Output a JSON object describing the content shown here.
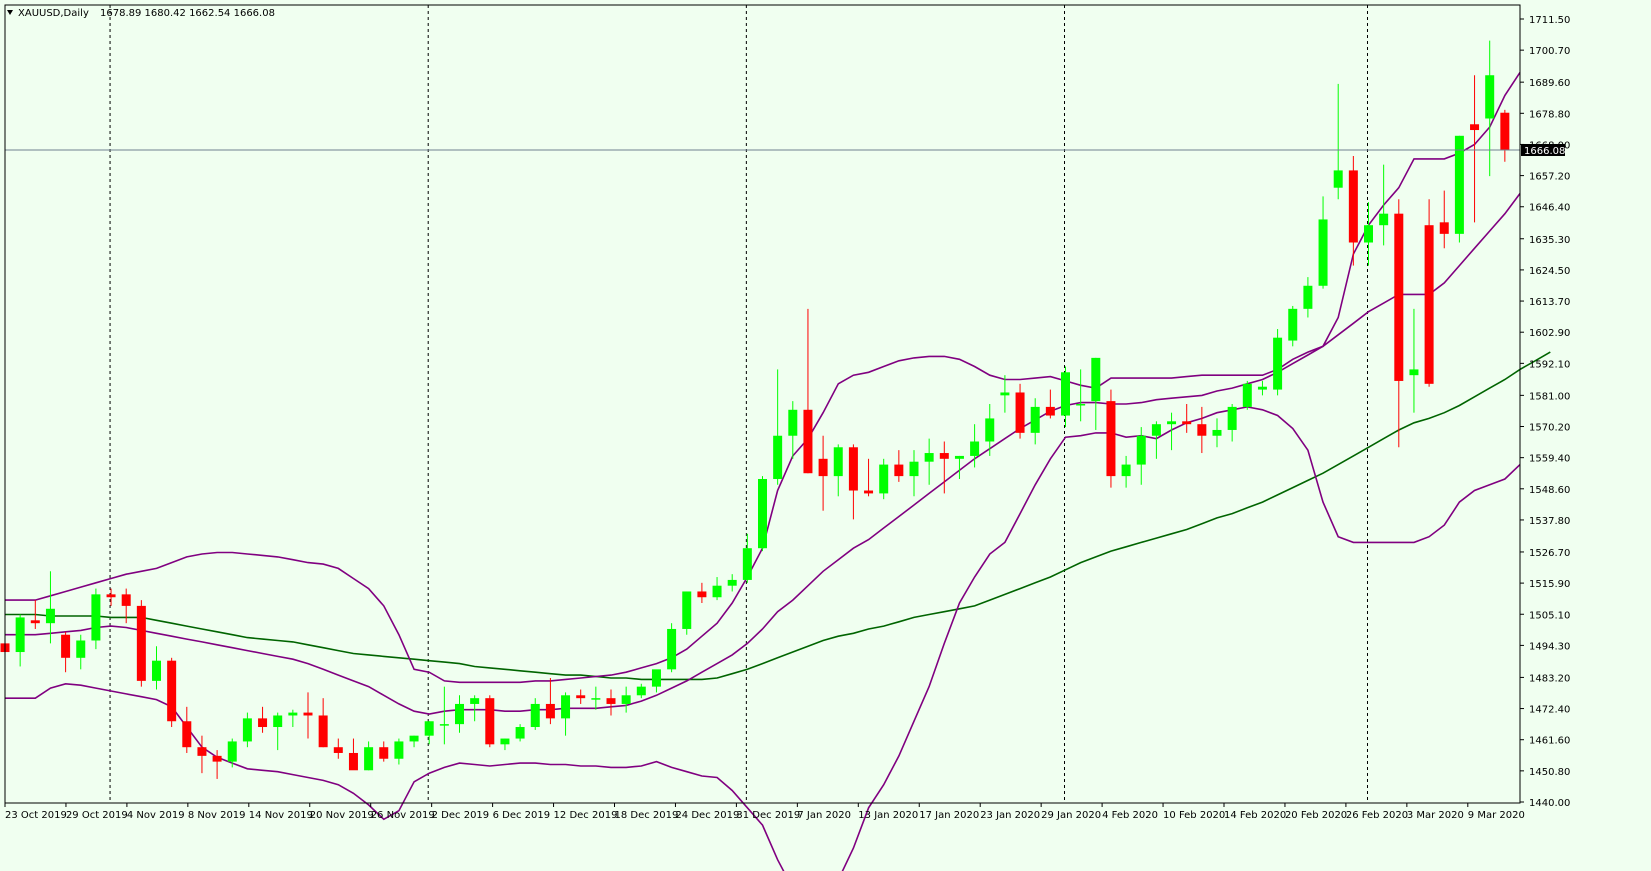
{
  "header": {
    "symbol": "XAUUSD,Daily",
    "ohlc": "1678.89 1680.42 1662.54 1666.08"
  },
  "colors": {
    "background": "#f0fff0",
    "bull": "#00ff00",
    "bear": "#ff0000",
    "bands": "#800080",
    "ma": "#006400",
    "grid": "#000000"
  },
  "chart_data": {
    "type": "candlestick",
    "title": "XAUUSD,Daily",
    "ylim": [
      1440.0,
      1711.5
    ],
    "price_ticks": [
      "1711.50",
      "1700.70",
      "1689.60",
      "1678.80",
      "1668.00",
      "1657.20",
      "1646.40",
      "1635.30",
      "1624.50",
      "1613.70",
      "1602.90",
      "1592.10",
      "1581.00",
      "1570.20",
      "1559.40",
      "1548.60",
      "1537.80",
      "1526.70",
      "1515.90",
      "1505.10",
      "1494.30",
      "1483.20",
      "1472.40",
      "1461.60",
      "1450.80",
      "1440.00"
    ],
    "current_price": 1666.08,
    "date_labels": [
      "23 Oct 2019",
      "29 Oct 2019",
      "4 Nov 2019",
      "8 Nov 2019",
      "14 Nov 2019",
      "20 Nov 2019",
      "26 Nov 2019",
      "2 Dec 2019",
      "6 Dec 2019",
      "12 Dec 2019",
      "18 Dec 2019",
      "24 Dec 2019",
      "31 Dec 2019",
      "7 Jan 2020",
      "13 Jan 2020",
      "17 Jan 2020",
      "23 Jan 2020",
      "29 Jan 2020",
      "4 Feb 2020",
      "10 Feb 2020",
      "14 Feb 2020",
      "20 Feb 2020",
      "26 Feb 2020",
      "3 Mar 2020",
      "9 Mar 2020"
    ],
    "period_separators": [
      "31 Oct 2019",
      "2 Dec 2019",
      "31 Dec 2019",
      "31 Jan 2020",
      "28 Feb 2020"
    ],
    "candles": [
      [
        1495,
        1503,
        1489,
        1492
      ],
      [
        1492,
        1505,
        1487,
        1504
      ],
      [
        1503,
        1510,
        1500,
        1502
      ],
      [
        1502,
        1520,
        1495,
        1507
      ],
      [
        1498,
        1499,
        1485,
        1490
      ],
      [
        1490,
        1498,
        1486,
        1496
      ],
      [
        1496,
        1514,
        1493,
        1512
      ],
      [
        1512,
        1514,
        1508,
        1511
      ],
      [
        1512,
        1514,
        1502,
        1508
      ],
      [
        1508,
        1510,
        1480,
        1482
      ],
      [
        1482,
        1494,
        1479,
        1489
      ],
      [
        1489,
        1490,
        1466,
        1468
      ],
      [
        1468,
        1473,
        1457,
        1459
      ],
      [
        1459,
        1463,
        1450,
        1456
      ],
      [
        1456,
        1458,
        1448,
        1454
      ],
      [
        1454,
        1462,
        1452,
        1461
      ],
      [
        1461,
        1471,
        1459,
        1469
      ],
      [
        1469,
        1473,
        1464,
        1466
      ],
      [
        1466,
        1471,
        1458,
        1470
      ],
      [
        1470,
        1472,
        1466,
        1471
      ],
      [
        1471,
        1478,
        1462,
        1470
      ],
      [
        1470,
        1476,
        1459,
        1459
      ],
      [
        1459,
        1462,
        1455,
        1457
      ],
      [
        1457,
        1462,
        1452,
        1451
      ],
      [
        1451,
        1461,
        1451,
        1459
      ],
      [
        1459,
        1461,
        1454,
        1455
      ],
      [
        1455,
        1462,
        1453,
        1461
      ],
      [
        1461,
        1463,
        1459,
        1463
      ],
      [
        1463,
        1468,
        1460,
        1468
      ],
      [
        1467,
        1480,
        1460,
        1467
      ],
      [
        1467,
        1477,
        1464,
        1474
      ],
      [
        1474,
        1477,
        1468,
        1476
      ],
      [
        1476,
        1477,
        1459,
        1460
      ],
      [
        1460,
        1462,
        1458,
        1462
      ],
      [
        1462,
        1467,
        1461,
        1466
      ],
      [
        1466,
        1476,
        1465,
        1474
      ],
      [
        1474,
        1483,
        1467,
        1469
      ],
      [
        1469,
        1478,
        1463,
        1477
      ],
      [
        1477,
        1479,
        1474,
        1476
      ],
      [
        1476,
        1480,
        1472,
        1476
      ],
      [
        1476,
        1479,
        1470,
        1474
      ],
      [
        1474,
        1480,
        1471,
        1477
      ],
      [
        1477,
        1481,
        1476,
        1480
      ],
      [
        1480,
        1485,
        1478,
        1486
      ],
      [
        1486,
        1502,
        1485,
        1500
      ],
      [
        1500,
        1513,
        1498,
        1513
      ],
      [
        1513,
        1516,
        1509,
        1511
      ],
      [
        1511,
        1518,
        1510,
        1515
      ],
      [
        1515,
        1519,
        1513,
        1517
      ],
      [
        1517,
        1533,
        1516,
        1528
      ],
      [
        1528,
        1553,
        1527,
        1552
      ],
      [
        1552,
        1590,
        1550,
        1567
      ],
      [
        1567,
        1579,
        1559,
        1576
      ],
      [
        1576,
        1611,
        1554,
        1554
      ],
      [
        1559,
        1567,
        1541,
        1553
      ],
      [
        1553,
        1564,
        1546,
        1563
      ],
      [
        1563,
        1564,
        1538,
        1548
      ],
      [
        1548,
        1559,
        1546,
        1547
      ],
      [
        1547,
        1559,
        1545,
        1557
      ],
      [
        1557,
        1562,
        1551,
        1553
      ],
      [
        1553,
        1562,
        1546,
        1558
      ],
      [
        1558,
        1566,
        1550,
        1561
      ],
      [
        1561,
        1565,
        1547,
        1559
      ],
      [
        1559,
        1560,
        1552,
        1560
      ],
      [
        1560,
        1571,
        1556,
        1565
      ],
      [
        1565,
        1578,
        1560,
        1573
      ],
      [
        1581,
        1588,
        1575,
        1582
      ],
      [
        1582,
        1585,
        1566,
        1568
      ],
      [
        1568,
        1580,
        1564,
        1577
      ],
      [
        1577,
        1583,
        1573,
        1574
      ],
      [
        1574,
        1591,
        1570,
        1589
      ],
      [
        1578,
        1590,
        1572,
        1578
      ],
      [
        1579,
        1594,
        1569,
        1594
      ],
      [
        1579,
        1583,
        1549,
        1553
      ],
      [
        1553,
        1560,
        1549,
        1557
      ],
      [
        1557,
        1570,
        1550,
        1567
      ],
      [
        1567,
        1572,
        1559,
        1571
      ],
      [
        1571,
        1575,
        1562,
        1572
      ],
      [
        1572,
        1578,
        1568,
        1571
      ],
      [
        1571,
        1577,
        1561,
        1567
      ],
      [
        1567,
        1573,
        1563,
        1569
      ],
      [
        1569,
        1578,
        1565,
        1577
      ],
      [
        1577,
        1586,
        1576,
        1585
      ],
      [
        1583,
        1586,
        1581,
        1584
      ],
      [
        1583,
        1604,
        1581,
        1601
      ],
      [
        1600,
        1612,
        1598,
        1611
      ],
      [
        1611,
        1622,
        1608,
        1619
      ],
      [
        1619,
        1650,
        1618,
        1642
      ],
      [
        1653,
        1689,
        1649,
        1659
      ],
      [
        1659,
        1664,
        1626,
        1634
      ],
      [
        1634,
        1648,
        1626,
        1640
      ],
      [
        1640,
        1661,
        1633,
        1644
      ],
      [
        1644,
        1649,
        1563,
        1586
      ],
      [
        1588,
        1611,
        1575,
        1590
      ],
      [
        1640,
        1649,
        1584,
        1585
      ],
      [
        1641,
        1652,
        1632,
        1637
      ],
      [
        1637,
        1671,
        1634,
        1671
      ],
      [
        1675,
        1692,
        1641,
        1673
      ],
      [
        1677,
        1704,
        1657,
        1692
      ],
      [
        1679,
        1680,
        1662,
        1666
      ]
    ]
  },
  "indicators": {
    "sma_long": [
      1505.0,
      1505.0,
      1505.0,
      1504.5,
      1504.5,
      1504.5,
      1504.5,
      1504.0,
      1504.0,
      1504.0,
      1503.0,
      1502.0,
      1501.0,
      1500.0,
      1499.0,
      1498.0,
      1497.0,
      1496.5,
      1496.0,
      1495.5,
      1494.5,
      1493.5,
      1492.5,
      1491.5,
      1491.0,
      1490.5,
      1490.0,
      1489.5,
      1489.0,
      1488.5,
      1488.0,
      1487.0,
      1486.5,
      1486.0,
      1485.5,
      1485.0,
      1484.5,
      1484.0,
      1484.0,
      1483.5,
      1483.0,
      1483.0,
      1482.5,
      1482.5,
      1482.5,
      1482.5,
      1482.5,
      1483.0,
      1484.5,
      1486.0,
      1488.0,
      1490.0,
      1492.0,
      1494.0,
      1496.0,
      1497.5,
      1498.5,
      1500.0,
      1501.0,
      1502.5,
      1504.0,
      1505.0,
      1506.0,
      1507.0,
      1508.0,
      1510.0,
      1512.0,
      1514.0,
      1516.0,
      1518.0,
      1520.5,
      1523.0,
      1525.0,
      1527.0,
      1528.5,
      1530.0,
      1531.5,
      1533.0,
      1534.5,
      1536.5,
      1538.5,
      1540.0,
      1542.0,
      1544.0,
      1546.5,
      1549.0,
      1551.5,
      1554.0,
      1557.0,
      1560.0,
      1563.0,
      1566.0,
      1569.0,
      1571.5,
      1573.0,
      1575.0,
      1577.5,
      1580.5,
      1583.5,
      1586.5,
      1590.0,
      1593.0,
      1596.0
    ],
    "bb_middle": [
      1498.0,
      1498.0,
      1498.0,
      1498.5,
      1499.0,
      1499.5,
      1500.5,
      1501.0,
      1500.5,
      1499.5,
      1498.5,
      1497.5,
      1496.5,
      1495.5,
      1494.5,
      1493.5,
      1492.5,
      1491.5,
      1490.5,
      1489.5,
      1488.0,
      1486.0,
      1484.0,
      1482.0,
      1480.0,
      1477.0,
      1474.0,
      1471.5,
      1470.5,
      1471.5,
      1472.0,
      1472.0,
      1472.0,
      1471.5,
      1471.5,
      1472.0,
      1472.0,
      1472.5,
      1472.5,
      1472.5,
      1473.0,
      1473.5,
      1475.0,
      1477.0,
      1479.5,
      1482.0,
      1485.0,
      1488.0,
      1491.0,
      1495.0,
      1500.0,
      1506.0,
      1510.0,
      1515.0,
      1520.0,
      1524.0,
      1528.0,
      1531.0,
      1535.0,
      1539.0,
      1543.0,
      1547.0,
      1551.0,
      1555.0,
      1559.0,
      1562.5,
      1566.0,
      1569.5,
      1572.5,
      1575.5,
      1577.5,
      1578.5,
      1578.5,
      1578.0,
      1578.0,
      1578.5,
      1579.5,
      1580.0,
      1580.5,
      1581.0,
      1582.5,
      1583.5,
      1585.0,
      1586.5,
      1589.0,
      1592.0,
      1595.0,
      1598.0,
      1602.0,
      1606.0,
      1610.0,
      1613.0,
      1616.0,
      1616.0,
      1616.0,
      1620.0,
      1626.0,
      1632.0,
      1638.0,
      1644.0,
      1651.0
    ],
    "bb_upper": [
      1510.0,
      1510.0,
      1510.0,
      1511.5,
      1513.0,
      1514.5,
      1516.0,
      1517.5,
      1519.0,
      1520.0,
      1521.0,
      1523.0,
      1525.0,
      1526.0,
      1526.5,
      1526.5,
      1526.0,
      1525.5,
      1525.0,
      1524.0,
      1523.0,
      1522.5,
      1521.0,
      1517.5,
      1514.0,
      1508.0,
      1498.0,
      1486.0,
      1485.0,
      1482.0,
      1481.5,
      1481.5,
      1481.5,
      1481.5,
      1481.5,
      1482.0,
      1482.0,
      1482.5,
      1483.0,
      1483.5,
      1484.0,
      1485.0,
      1486.5,
      1488.0,
      1490.0,
      1493.0,
      1497.5,
      1502.0,
      1509.0,
      1518.0,
      1528.0,
      1548.0,
      1560.0,
      1566.0,
      1575.0,
      1585.0,
      1588.0,
      1589.0,
      1591.0,
      1593.0,
      1594.0,
      1594.5,
      1594.5,
      1593.5,
      1591.0,
      1588.0,
      1586.5,
      1586.5,
      1587.0,
      1587.5,
      1586.0,
      1584.5,
      1583.5,
      1587.0,
      1587.0,
      1587.0,
      1587.0,
      1587.0,
      1587.5,
      1588.0,
      1588.0,
      1588.0,
      1588.0,
      1588.0,
      1590.0,
      1593.5,
      1596.0,
      1598.0,
      1608.0,
      1630.0,
      1640.0,
      1647.0,
      1653.0,
      1663.0,
      1663.0,
      1663.0,
      1665.0,
      1668.0,
      1674.0,
      1685.0,
      1693.0
    ],
    "bb_lower": [
      1476.0,
      1476.0,
      1476.0,
      1479.5,
      1481.0,
      1480.5,
      1479.5,
      1478.5,
      1477.5,
      1476.5,
      1475.5,
      1473.0,
      1466.0,
      1459.0,
      1455.5,
      1453.5,
      1451.5,
      1451.0,
      1450.5,
      1449.5,
      1448.5,
      1447.5,
      1446.0,
      1443.0,
      1439.0,
      1434.0,
      1437.0,
      1447.0,
      1450.0,
      1452.0,
      1453.5,
      1453.0,
      1452.5,
      1453.0,
      1453.5,
      1453.5,
      1453.0,
      1453.0,
      1452.5,
      1452.5,
      1452.0,
      1452.0,
      1452.5,
      1454.0,
      1452.0,
      1450.5,
      1449.0,
      1448.5,
      1444.0,
      1438.0,
      1432.0,
      1420.0,
      1410.0,
      1402.0,
      1406.0,
      1413.0,
      1424.0,
      1438.0,
      1446.0,
      1456.0,
      1468.0,
      1480.0,
      1495.0,
      1509.0,
      1518.0,
      1526.0,
      1530.0,
      1540.0,
      1550.0,
      1559.0,
      1566.5,
      1567.0,
      1568.0,
      1568.0,
      1566.5,
      1567.0,
      1566.0,
      1569.0,
      1571.5,
      1573.0,
      1575.0,
      1576.0,
      1577.0,
      1576.0,
      1574.0,
      1569.5,
      1562.0,
      1544.0,
      1532.0,
      1530.0,
      1530.0,
      1530.0,
      1530.0,
      1530.0,
      1532.0,
      1536.0,
      1544.0,
      1548.0,
      1550.0,
      1552.0,
      1557.0
    ]
  }
}
